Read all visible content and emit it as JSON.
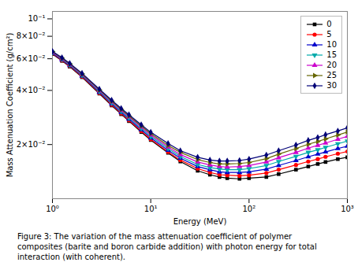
{
  "chart_data": {
    "type": "line",
    "xlabel": "Energy (MeV)",
    "ylabel": "Mass Attenuation Coefficient (g/cm²)",
    "caption": "Figure 3: The variation of the mass attenuation coefficient of polymer\ncomposites (barite and boron carbide addition) with photon energy for total\ninteraction (with coherent).",
    "log": true,
    "grid": false,
    "legend": "upper right",
    "xlim": [
      1.0,
      1000.0
    ],
    "ylim": [
      0.01,
      0.11
    ],
    "xticks": [
      {
        "value": 1,
        "label": "10⁰"
      },
      {
        "value": 10,
        "label": "10¹"
      },
      {
        "value": 100,
        "label": "10²"
      },
      {
        "value": 1000,
        "label": "10³"
      }
    ],
    "yticks": [
      {
        "value": 0.02,
        "label": "2×10⁻²"
      },
      {
        "value": 0.04,
        "label": "4×10⁻²"
      },
      {
        "value": 0.06,
        "label": "6×10⁻²"
      },
      {
        "value": 0.08,
        "label": "8×10⁻²"
      },
      {
        "value": 0.1,
        "label": "10⁻¹"
      }
    ],
    "x": [
      1.0,
      1.25,
      1.5,
      2.0,
      3.0,
      4.0,
      5.0,
      6.0,
      8.0,
      10.0,
      15.0,
      20.0,
      30.0,
      40.0,
      50.0,
      60.0,
      80.0,
      100.0,
      150.0,
      200.0,
      300.0,
      400.0,
      500.0,
      600.0,
      800.0,
      1000.0
    ],
    "series": [
      {
        "name": "0",
        "color": "#000000",
        "marker": "square",
        "values": [
          0.0637,
          0.0584,
          0.0542,
          0.0474,
          0.0384,
          0.033,
          0.0295,
          0.027,
          0.0235,
          0.0212,
          0.018,
          0.0161,
          0.0143,
          0.0136,
          0.0132,
          0.013,
          0.0129,
          0.013,
          0.0132,
          0.0137,
          0.0145,
          0.0151,
          0.0156,
          0.016,
          0.0166,
          0.017
        ]
      },
      {
        "name": "5",
        "color": "#ff0000",
        "marker": "circle",
        "values": [
          0.0641,
          0.0588,
          0.0546,
          0.0478,
          0.0387,
          0.0333,
          0.0298,
          0.0273,
          0.0238,
          0.0214,
          0.0182,
          0.0164,
          0.0147,
          0.014,
          0.0136,
          0.0135,
          0.0134,
          0.0135,
          0.0139,
          0.0145,
          0.0154,
          0.0161,
          0.0166,
          0.0171,
          0.0178,
          0.0183
        ]
      },
      {
        "name": "10",
        "color": "#0000cc",
        "marker": "triangle_up",
        "values": [
          0.0645,
          0.0592,
          0.055,
          0.0482,
          0.0391,
          0.0337,
          0.0302,
          0.0277,
          0.0242,
          0.0218,
          0.0186,
          0.0168,
          0.0151,
          0.0145,
          0.0141,
          0.014,
          0.014,
          0.0141,
          0.0146,
          0.0153,
          0.0163,
          0.0171,
          0.0177,
          0.0182,
          0.019,
          0.0196
        ]
      },
      {
        "name": "15",
        "color": "#00aaaa",
        "marker": "triangle_down",
        "values": [
          0.0649,
          0.0596,
          0.0554,
          0.0486,
          0.0395,
          0.0341,
          0.0306,
          0.0281,
          0.0246,
          0.0222,
          0.019,
          0.0172,
          0.0155,
          0.0149,
          0.0146,
          0.0145,
          0.0145,
          0.0147,
          0.0153,
          0.0161,
          0.0172,
          0.0181,
          0.0187,
          0.0193,
          0.0202,
          0.0209
        ]
      },
      {
        "name": "20",
        "color": "#cc00cc",
        "marker": "triangle_up",
        "values": [
          0.0652,
          0.06,
          0.0558,
          0.049,
          0.0399,
          0.0345,
          0.031,
          0.0285,
          0.025,
          0.0226,
          0.0194,
          0.0176,
          0.016,
          0.0154,
          0.0151,
          0.015,
          0.0151,
          0.0153,
          0.016,
          0.0169,
          0.0181,
          0.0191,
          0.0198,
          0.0204,
          0.0214,
          0.0222
        ]
      },
      {
        "name": "25",
        "color": "#666600",
        "marker": "triangle_right",
        "values": [
          0.0656,
          0.0604,
          0.0562,
          0.0494,
          0.0403,
          0.0349,
          0.0314,
          0.0289,
          0.0254,
          0.023,
          0.0198,
          0.0181,
          0.0165,
          0.0159,
          0.0156,
          0.0156,
          0.0157,
          0.0159,
          0.0167,
          0.0177,
          0.019,
          0.0201,
          0.0208,
          0.0215,
          0.0226,
          0.0235
        ]
      },
      {
        "name": "30",
        "color": "#000077",
        "marker": "diamond",
        "values": [
          0.066,
          0.0608,
          0.0566,
          0.0498,
          0.0407,
          0.0353,
          0.0318,
          0.0293,
          0.0258,
          0.0234,
          0.0203,
          0.0185,
          0.017,
          0.0164,
          0.0162,
          0.0162,
          0.0163,
          0.0166,
          0.0175,
          0.0185,
          0.0199,
          0.0211,
          0.0219,
          0.0227,
          0.0238,
          0.0248
        ]
      }
    ]
  }
}
